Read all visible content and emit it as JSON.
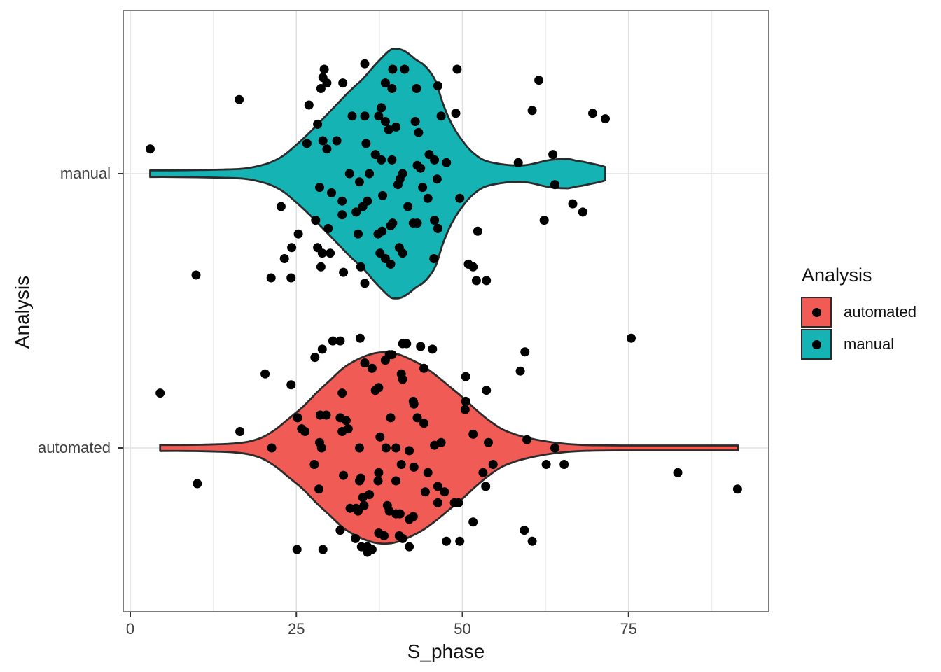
{
  "chart_data": {
    "type": "violin",
    "xlabel": "S_phase",
    "ylabel": "Analysis",
    "x_ticks": [
      "0",
      "25",
      "50",
      "75"
    ],
    "x_tick_values": [
      0,
      25,
      50,
      75
    ],
    "x_minor_values": [
      12.5,
      37.5,
      62.5,
      87.5
    ],
    "xlim": [
      -1.1,
      95.7
    ],
    "y_categories": [
      "manual",
      "automated"
    ],
    "grid": true,
    "legend": {
      "title": "Analysis",
      "position": "right",
      "items": [
        {
          "label": "automated",
          "color": "#F05C55"
        },
        {
          "label": "manual",
          "color": "#16B3B5"
        }
      ]
    },
    "style": {
      "outline_color": "#2b2b2b",
      "point_color": "#000000",
      "point_radius": 6.5,
      "panel_border_color": "#7d7d7d",
      "grid_major_color": "#e0e0e0",
      "grid_minor_color": "#eeeeee",
      "tick_color": "#333333"
    },
    "series": [
      {
        "name": "manual",
        "row": "manual",
        "color": "#16B3B5",
        "violin_profile": [
          [
            3,
            0.012
          ],
          [
            6,
            0.012
          ],
          [
            10,
            0.013
          ],
          [
            14,
            0.015
          ],
          [
            17,
            0.018
          ],
          [
            19,
            0.026
          ],
          [
            21,
            0.04
          ],
          [
            23,
            0.065
          ],
          [
            25,
            0.105
          ],
          [
            27,
            0.15
          ],
          [
            29,
            0.2
          ],
          [
            31,
            0.25
          ],
          [
            33,
            0.3
          ],
          [
            35,
            0.345
          ],
          [
            37,
            0.4
          ],
          [
            39,
            0.448
          ],
          [
            40,
            0.455
          ],
          [
            41,
            0.45
          ],
          [
            42,
            0.435
          ],
          [
            43,
            0.415
          ],
          [
            44,
            0.4
          ],
          [
            45,
            0.375
          ],
          [
            46,
            0.335
          ],
          [
            47,
            0.26
          ],
          [
            48,
            0.2
          ],
          [
            49,
            0.155
          ],
          [
            50,
            0.12
          ],
          [
            51,
            0.09
          ],
          [
            52,
            0.068
          ],
          [
            53,
            0.052
          ],
          [
            54,
            0.043
          ],
          [
            55,
            0.038
          ],
          [
            56,
            0.034
          ],
          [
            57,
            0.031
          ],
          [
            58,
            0.03
          ],
          [
            59,
            0.03
          ],
          [
            60,
            0.033
          ],
          [
            61,
            0.038
          ],
          [
            62,
            0.044
          ],
          [
            63,
            0.049
          ],
          [
            64,
            0.052
          ],
          [
            65,
            0.053
          ],
          [
            66,
            0.053
          ],
          [
            67,
            0.048
          ],
          [
            68,
            0.044
          ],
          [
            69,
            0.039
          ],
          [
            70,
            0.034
          ],
          [
            71,
            0.028
          ],
          [
            71.5,
            0.024
          ]
        ],
        "points": [
          [
            16.4,
            0.27
          ],
          [
            3.0,
            0.09
          ],
          [
            9.9,
            -0.37
          ],
          [
            29.2,
            0.38
          ],
          [
            29.0,
            0.35
          ],
          [
            29.6,
            0.33
          ],
          [
            28.7,
            0.31
          ],
          [
            32.0,
            0.33
          ],
          [
            26.9,
            0.25
          ],
          [
            28.2,
            0.18
          ],
          [
            26.6,
            0.11
          ],
          [
            29.0,
            0.12
          ],
          [
            29.6,
            0.09
          ],
          [
            31.1,
            0.12
          ],
          [
            33.4,
            0.21
          ],
          [
            35.3,
            0.21
          ],
          [
            35.3,
            0.4
          ],
          [
            37.8,
            0.24
          ],
          [
            37.4,
            0.21
          ],
          [
            38.4,
            0.19
          ],
          [
            38.9,
            0.16
          ],
          [
            39.5,
            0.38
          ],
          [
            38.4,
            0.33
          ],
          [
            39.4,
            0.31
          ],
          [
            41.3,
            0.38
          ],
          [
            43.1,
            0.31
          ],
          [
            42.9,
            0.19
          ],
          [
            43.4,
            0.15
          ],
          [
            35.5,
            0.11
          ],
          [
            36.9,
            0.07
          ],
          [
            37.8,
            0.05
          ],
          [
            39.4,
            0.05
          ],
          [
            40.0,
            0.17
          ],
          [
            41.0,
            0.0
          ],
          [
            40.6,
            -0.02
          ],
          [
            40.3,
            -0.04
          ],
          [
            43.2,
            0.03
          ],
          [
            43.7,
            0.02
          ],
          [
            45.0,
            0.07
          ],
          [
            45.8,
            0.05
          ],
          [
            46.3,
            0.32
          ],
          [
            46.8,
            0.21
          ],
          [
            46.2,
            -0.02
          ],
          [
            28.5,
            -0.05
          ],
          [
            30.3,
            -0.07
          ],
          [
            31.9,
            -0.1
          ],
          [
            31.9,
            -0.15
          ],
          [
            34.0,
            -0.14
          ],
          [
            35.0,
            -0.12
          ],
          [
            35.7,
            -0.1
          ],
          [
            22.7,
            -0.12
          ],
          [
            27.9,
            -0.17
          ],
          [
            29.8,
            -0.2
          ],
          [
            34.3,
            -0.22
          ],
          [
            37.3,
            -0.22
          ],
          [
            37.9,
            -0.21
          ],
          [
            39.2,
            -0.19
          ],
          [
            39.5,
            -0.18
          ],
          [
            42.6,
            -0.18
          ],
          [
            43.2,
            -0.18
          ],
          [
            44.8,
            -0.09
          ],
          [
            45.8,
            -0.17
          ],
          [
            46.3,
            -0.2
          ],
          [
            25.3,
            -0.22
          ],
          [
            24.3,
            -0.27
          ],
          [
            23.2,
            -0.31
          ],
          [
            28.2,
            -0.27
          ],
          [
            28.9,
            -0.29
          ],
          [
            30.1,
            -0.29
          ],
          [
            28.7,
            -0.34
          ],
          [
            32.1,
            -0.36
          ],
          [
            34.7,
            -0.34
          ],
          [
            35.3,
            -0.4
          ],
          [
            37.6,
            -0.29
          ],
          [
            38.4,
            -0.31
          ],
          [
            39.2,
            -0.33
          ],
          [
            40.5,
            -0.27
          ],
          [
            41.0,
            -0.29
          ],
          [
            21.2,
            -0.38
          ],
          [
            24.2,
            -0.38
          ],
          [
            45.7,
            -0.31
          ],
          [
            49.2,
            0.38
          ],
          [
            49.0,
            0.22
          ],
          [
            61.5,
            0.34
          ],
          [
            60.5,
            0.23
          ],
          [
            69.6,
            0.22
          ],
          [
            71.5,
            0.2
          ],
          [
            58.4,
            0.04
          ],
          [
            63.6,
            0.07
          ],
          [
            63.9,
            -0.04
          ],
          [
            47.6,
            0.04
          ],
          [
            49.6,
            -0.09
          ],
          [
            66.6,
            -0.11
          ],
          [
            68.1,
            -0.14
          ],
          [
            62.3,
            -0.17
          ],
          [
            52.3,
            -0.21
          ],
          [
            50.9,
            -0.33
          ],
          [
            51.6,
            -0.34
          ],
          [
            52.1,
            -0.39
          ],
          [
            53.6,
            -0.39
          ],
          [
            36.0,
            0.0
          ],
          [
            33.0,
            0.0
          ],
          [
            34.5,
            -0.03
          ],
          [
            38.0,
            -0.08
          ],
          [
            41.8,
            -0.12
          ],
          [
            44.0,
            -0.05
          ]
        ]
      },
      {
        "name": "automated",
        "row": "automated",
        "color": "#F05C55",
        "violin_profile": [
          [
            4.5,
            0.011
          ],
          [
            8,
            0.011
          ],
          [
            11,
            0.012
          ],
          [
            14,
            0.014
          ],
          [
            16,
            0.017
          ],
          [
            18,
            0.024
          ],
          [
            20,
            0.04
          ],
          [
            22,
            0.07
          ],
          [
            24,
            0.11
          ],
          [
            26,
            0.15
          ],
          [
            28,
            0.2
          ],
          [
            30,
            0.245
          ],
          [
            32,
            0.29
          ],
          [
            34,
            0.32
          ],
          [
            36,
            0.34
          ],
          [
            37.5,
            0.348
          ],
          [
            39,
            0.348
          ],
          [
            40.5,
            0.34
          ],
          [
            42,
            0.325
          ],
          [
            44,
            0.3
          ],
          [
            46,
            0.265
          ],
          [
            48,
            0.225
          ],
          [
            50,
            0.185
          ],
          [
            52,
            0.14
          ],
          [
            54,
            0.1
          ],
          [
            56,
            0.068
          ],
          [
            58,
            0.049
          ],
          [
            60,
            0.036
          ],
          [
            62,
            0.026
          ],
          [
            64,
            0.019
          ],
          [
            66,
            0.014
          ],
          [
            68,
            0.011
          ],
          [
            70,
            0.01
          ],
          [
            74,
            0.009
          ],
          [
            80,
            0.009
          ],
          [
            86,
            0.009
          ],
          [
            91.5,
            0.009
          ]
        ],
        "points": [
          [
            4.5,
            0.2
          ],
          [
            10.1,
            -0.13
          ],
          [
            16.5,
            0.06
          ],
          [
            20.3,
            0.27
          ],
          [
            24.2,
            0.23
          ],
          [
            21.3,
            0.0
          ],
          [
            25.2,
            0.11
          ],
          [
            25.8,
            0.07
          ],
          [
            26.3,
            0.06
          ],
          [
            27.8,
            0.33
          ],
          [
            28.9,
            0.36
          ],
          [
            30.5,
            0.39
          ],
          [
            31.6,
            0.39
          ],
          [
            34.6,
            0.4
          ],
          [
            28.6,
            0.12
          ],
          [
            28.5,
            0.02
          ],
          [
            28.8,
            0.0
          ],
          [
            27.7,
            -0.06
          ],
          [
            28.4,
            -0.15
          ],
          [
            31.9,
            0.2
          ],
          [
            32.1,
            -0.1
          ],
          [
            29.5,
            0.12
          ],
          [
            31.6,
            0.11
          ],
          [
            32.5,
            0.1
          ],
          [
            32.8,
            0.07
          ],
          [
            31.9,
            0.06
          ],
          [
            34.5,
            0.0
          ],
          [
            34.7,
            -0.11
          ],
          [
            34.5,
            -0.12
          ],
          [
            35.0,
            -0.18
          ],
          [
            36.0,
            -0.17
          ],
          [
            33.1,
            -0.22
          ],
          [
            34.0,
            -0.22
          ],
          [
            34.3,
            -0.23
          ],
          [
            35.2,
            -0.21
          ],
          [
            33.9,
            -0.33
          ],
          [
            34.8,
            -0.36
          ],
          [
            35.7,
            -0.36
          ],
          [
            31.6,
            -0.3
          ],
          [
            25.1,
            -0.37
          ],
          [
            29.0,
            -0.37
          ],
          [
            35.3,
            0.31
          ],
          [
            36.4,
            0.29
          ],
          [
            36.9,
            0.21
          ],
          [
            37.4,
            0.22
          ],
          [
            38.4,
            0.32
          ],
          [
            39.0,
            0.34
          ],
          [
            39.4,
            0.34
          ],
          [
            41.0,
            0.38
          ],
          [
            41.6,
            0.38
          ],
          [
            43.7,
            0.37
          ],
          [
            45.5,
            0.36
          ],
          [
            40.8,
            0.27
          ],
          [
            41.0,
            0.25
          ],
          [
            44.2,
            0.29
          ],
          [
            39.2,
            0.11
          ],
          [
            37.6,
            0.04
          ],
          [
            38.5,
            0.0
          ],
          [
            40.0,
            0.0
          ],
          [
            42.0,
            -0.01
          ],
          [
            42.6,
            0.17
          ],
          [
            42.7,
            0.16
          ],
          [
            43.2,
            0.11
          ],
          [
            40.8,
            -0.06
          ],
          [
            42.7,
            -0.07
          ],
          [
            37.4,
            -0.09
          ],
          [
            37.3,
            -0.12
          ],
          [
            40.0,
            -0.12
          ],
          [
            44.2,
            0.09
          ],
          [
            44.8,
            -0.09
          ],
          [
            44.4,
            -0.16
          ],
          [
            46.3,
            -0.14
          ],
          [
            47.3,
            -0.16
          ],
          [
            45.8,
            0.01
          ],
          [
            46.8,
            0.02
          ],
          [
            46.3,
            -0.2
          ],
          [
            42.0,
            -0.26
          ],
          [
            42.6,
            -0.25
          ],
          [
            40.0,
            -0.24
          ],
          [
            40.6,
            -0.24
          ],
          [
            38.7,
            -0.21
          ],
          [
            39.0,
            -0.23
          ],
          [
            37.4,
            -0.31
          ],
          [
            38.2,
            -0.32
          ],
          [
            40.5,
            -0.32
          ],
          [
            41.0,
            -0.33
          ],
          [
            42.0,
            -0.36
          ],
          [
            35.7,
            -0.38
          ],
          [
            36.4,
            -0.37
          ],
          [
            50.5,
            0.26
          ],
          [
            53.6,
            0.21
          ],
          [
            50.5,
            0.17
          ],
          [
            50.4,
            0.14
          ],
          [
            59.4,
            0.35
          ],
          [
            58.7,
            0.28
          ],
          [
            75.4,
            0.4
          ],
          [
            51.6,
            0.05
          ],
          [
            53.9,
            0.02
          ],
          [
            59.7,
            0.03
          ],
          [
            63.9,
            0.0
          ],
          [
            62.6,
            -0.06
          ],
          [
            65.3,
            -0.06
          ],
          [
            54.6,
            -0.06
          ],
          [
            53.1,
            -0.09
          ],
          [
            53.5,
            -0.14
          ],
          [
            49.4,
            -0.2
          ],
          [
            48.8,
            -0.2
          ],
          [
            51.6,
            -0.27
          ],
          [
            59.3,
            -0.3
          ],
          [
            60.5,
            -0.34
          ],
          [
            49.6,
            -0.34
          ],
          [
            47.6,
            -0.34
          ],
          [
            82.4,
            -0.09
          ],
          [
            91.4,
            -0.15
          ]
        ]
      }
    ]
  }
}
